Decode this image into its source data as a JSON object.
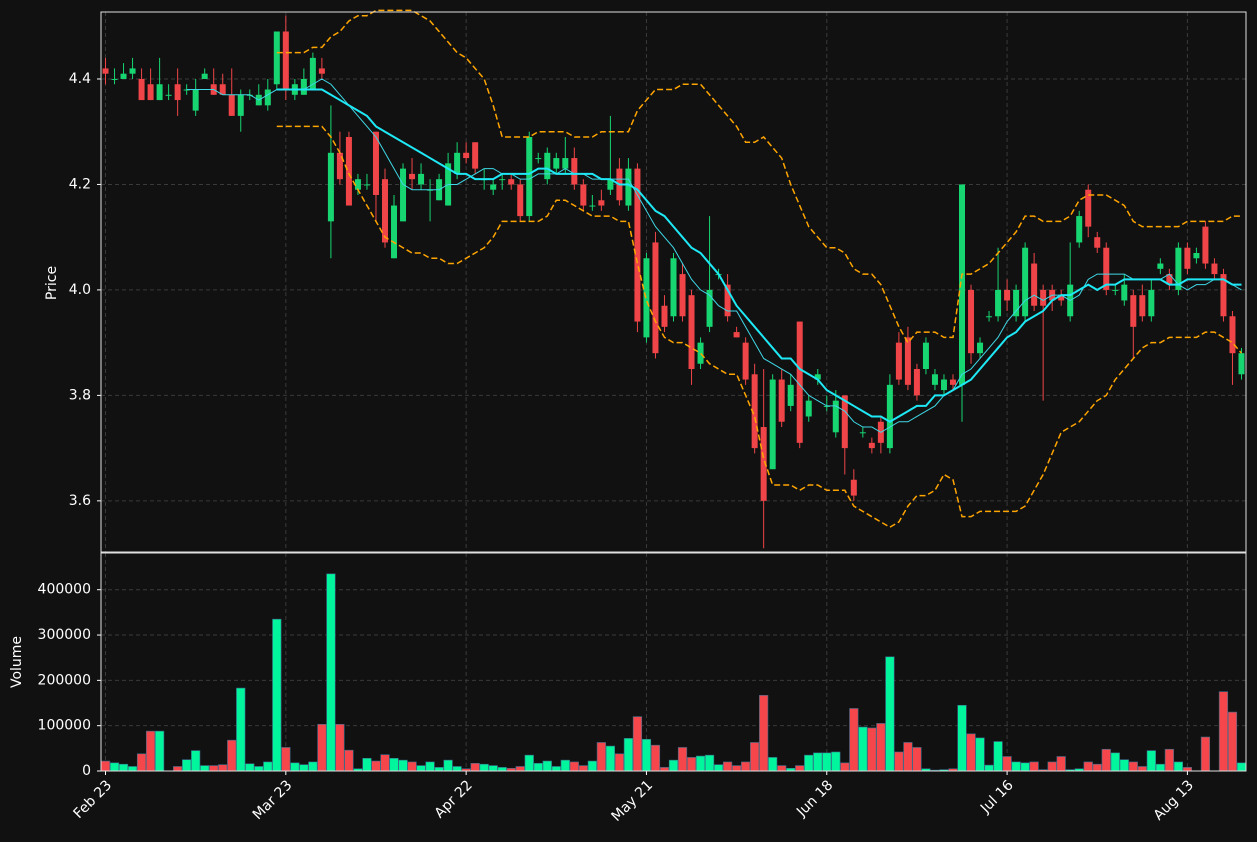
{
  "chart_data": {
    "type": "candlestick",
    "ylabel": "Price",
    "volume_label": "Volume",
    "ylim": [
      3.503,
      4.527
    ],
    "yticks": [
      3.6,
      3.8,
      {
        "value": 4,
        "label": "4.0"
      },
      4.2,
      4.4
    ],
    "volume_ylim": [
      0,
      481000
    ],
    "volume_yticks": [
      0,
      100000,
      200000,
      300000,
      400000
    ],
    "grid": true,
    "up_color": "#17d672",
    "down_color": "#ef4548",
    "volume_up_color": "#00f59c",
    "volume_down_color": "#f5464b",
    "categories": [
      "Feb 23",
      null,
      null,
      null,
      null,
      null,
      null,
      null,
      null,
      null,
      null,
      null,
      null,
      null,
      null,
      null,
      null,
      null,
      null,
      null,
      "Mar 23",
      null,
      null,
      null,
      null,
      null,
      null,
      null,
      null,
      null,
      null,
      null,
      null,
      null,
      null,
      null,
      null,
      null,
      null,
      null,
      "Apr 22",
      null,
      null,
      null,
      null,
      null,
      null,
      null,
      null,
      null,
      null,
      null,
      null,
      null,
      null,
      null,
      null,
      null,
      null,
      null,
      "May 21",
      null,
      null,
      null,
      null,
      null,
      null,
      null,
      null,
      null,
      null,
      null,
      null,
      null,
      null,
      null,
      null,
      null,
      null,
      null,
      "Jun 18",
      null,
      null,
      null,
      null,
      null,
      null,
      null,
      null,
      null,
      null,
      null,
      null,
      null,
      null,
      null,
      null,
      null,
      null,
      null,
      "Jul 16",
      null,
      null,
      null,
      null,
      null,
      null,
      null,
      null,
      null,
      null,
      null,
      null,
      null,
      null,
      null,
      null,
      null,
      null,
      null,
      "Aug 13",
      null,
      null,
      null,
      null,
      null,
      null
    ],
    "open": [
      4.42,
      4.4,
      4.4,
      4.41,
      4.4,
      4.39,
      4.36,
      4.37,
      4.39,
      4.38,
      4.34,
      4.4,
      4.39,
      4.39,
      4.37,
      4.33,
      4.37,
      4.35,
      4.35,
      4.39,
      4.49,
      4.37,
      4.37,
      4.38,
      4.42,
      4.13,
      4.26,
      4.29,
      4.19,
      4.2,
      4.3,
      4.21,
      4.06,
      4.13,
      4.22,
      4.2,
      4.19,
      4.17,
      4.16,
      4.22,
      4.26,
      4.28,
      4.21,
      4.19,
      4.21,
      4.21,
      4.2,
      4.14,
      4.25,
      4.21,
      4.23,
      4.23,
      4.25,
      4.2,
      4.16,
      4.17,
      4.19,
      4.23,
      4.16,
      4.23,
      3.91,
      4.09,
      3.97,
      3.95,
      4.03,
      3.99,
      3.86,
      3.93,
      4.03,
      4.01,
      3.92,
      3.9,
      3.84,
      3.74,
      3.66,
      3.83,
      3.78,
      3.94,
      3.76,
      3.83,
      3.78,
      3.73,
      3.8,
      3.64,
      3.73,
      3.71,
      3.75,
      3.7,
      3.9,
      3.91,
      3.85,
      3.85,
      3.82,
      3.81,
      3.83,
      3.82,
      4.0,
      3.88,
      3.95,
      3.95,
      4.0,
      3.95,
      3.95,
      4.05,
      4.0,
      4.0,
      3.99,
      3.95,
      4.09,
      4.19,
      4.1,
      4.08,
      4.0,
      3.98,
      3.99,
      3.99,
      3.95,
      4.04,
      4.03,
      4.0,
      4.08,
      4.06,
      4.12,
      4.05,
      4.03,
      3.95,
      3.84
    ],
    "high": [
      4.44,
      4.42,
      4.43,
      4.44,
      4.42,
      4.42,
      4.44,
      4.39,
      4.42,
      4.39,
      4.4,
      4.42,
      4.42,
      4.41,
      4.42,
      4.38,
      4.38,
      4.39,
      4.4,
      4.49,
      4.52,
      4.4,
      4.42,
      4.45,
      4.44,
      4.35,
      4.3,
      4.3,
      4.22,
      4.22,
      4.3,
      4.23,
      4.18,
      4.24,
      4.25,
      4.24,
      4.21,
      4.22,
      4.26,
      4.28,
      4.28,
      4.28,
      4.23,
      4.21,
      4.22,
      4.22,
      4.21,
      4.3,
      4.26,
      4.27,
      4.26,
      4.29,
      4.27,
      4.21,
      4.18,
      4.19,
      4.33,
      4.25,
      4.25,
      4.24,
      4.07,
      4.11,
      3.99,
      4.07,
      4.05,
      4.0,
      3.91,
      4.14,
      4.04,
      4.03,
      3.93,
      3.91,
      3.86,
      3.85,
      3.84,
      3.85,
      3.84,
      3.94,
      3.8,
      3.85,
      3.8,
      3.81,
      3.8,
      3.66,
      3.74,
      3.72,
      3.76,
      3.84,
      3.92,
      3.93,
      3.86,
      3.91,
      3.85,
      3.84,
      3.84,
      4.2,
      4.01,
      3.91,
      3.96,
      4.08,
      4.02,
      4.01,
      4.09,
      4.07,
      4.01,
      4.01,
      4.0,
      4.09,
      4.15,
      4.2,
      4.11,
      4.09,
      4.01,
      4.03,
      4.0,
      4.01,
      4.02,
      4.06,
      4.04,
      4.09,
      4.09,
      4.08,
      4.13,
      4.06,
      4.04,
      3.96,
      3.89
    ],
    "low": [
      4.39,
      4.39,
      4.4,
      4.4,
      4.36,
      4.36,
      4.36,
      4.36,
      4.33,
      4.37,
      4.33,
      4.4,
      4.37,
      4.37,
      4.33,
      4.3,
      4.36,
      4.35,
      4.34,
      4.38,
      4.36,
      4.36,
      4.37,
      4.38,
      4.4,
      4.06,
      4.2,
      4.16,
      4.18,
      4.19,
      4.13,
      4.08,
      4.06,
      4.13,
      4.19,
      4.19,
      4.13,
      4.17,
      4.16,
      4.21,
      4.24,
      4.22,
      4.19,
      4.18,
      4.19,
      4.19,
      4.13,
      4.13,
      4.24,
      4.2,
      4.22,
      4.22,
      4.19,
      4.15,
      4.15,
      4.15,
      4.18,
      4.16,
      4.15,
      3.92,
      3.9,
      3.87,
      3.92,
      3.94,
      3.94,
      3.82,
      3.85,
      3.92,
      4.02,
      3.94,
      3.91,
      3.82,
      3.69,
      3.51,
      3.66,
      3.74,
      3.77,
      3.7,
      3.75,
      3.82,
      3.77,
      3.72,
      3.65,
      3.6,
      3.72,
      3.69,
      3.69,
      3.69,
      3.82,
      3.81,
      3.79,
      3.84,
      3.81,
      3.8,
      3.81,
      3.75,
      3.86,
      3.87,
      3.94,
      3.94,
      3.96,
      3.94,
      3.94,
      3.96,
      3.79,
      3.96,
      3.97,
      3.94,
      4.08,
      4.1,
      4.07,
      3.99,
      3.99,
      3.97,
      3.87,
      3.94,
      3.94,
      4.03,
      4.0,
      3.99,
      4.03,
      4.05,
      4.04,
      4.02,
      3.94,
      3.82,
      3.83
    ],
    "close": [
      4.41,
      4.4,
      4.41,
      4.42,
      4.36,
      4.36,
      4.39,
      4.37,
      4.36,
      4.38,
      4.38,
      4.41,
      4.37,
      4.37,
      4.33,
      4.37,
      4.37,
      4.37,
      4.38,
      4.49,
      4.38,
      4.39,
      4.4,
      4.44,
      4.41,
      4.26,
      4.21,
      4.16,
      4.21,
      4.2,
      4.18,
      4.09,
      4.16,
      4.23,
      4.21,
      4.22,
      4.19,
      4.21,
      4.24,
      4.26,
      4.25,
      4.23,
      4.21,
      4.2,
      4.21,
      4.2,
      4.14,
      4.29,
      4.25,
      4.26,
      4.25,
      4.25,
      4.2,
      4.16,
      4.16,
      4.16,
      4.21,
      4.17,
      4.23,
      3.94,
      4.06,
      3.88,
      3.93,
      4.06,
      3.95,
      3.85,
      3.9,
      4.0,
      4.03,
      3.95,
      3.91,
      3.83,
      3.7,
      3.6,
      3.83,
      3.75,
      3.82,
      3.71,
      3.79,
      3.84,
      3.78,
      3.79,
      3.7,
      3.61,
      3.73,
      3.7,
      3.71,
      3.82,
      3.83,
      3.82,
      3.8,
      3.9,
      3.84,
      3.83,
      3.82,
      4.2,
      3.88,
      3.9,
      3.95,
      4.0,
      3.98,
      4.0,
      4.08,
      3.97,
      3.97,
      3.98,
      3.98,
      4.01,
      4.14,
      4.12,
      4.08,
      4.0,
      4.0,
      4.01,
      3.93,
      3.95,
      4.0,
      4.05,
      4.01,
      4.08,
      4.04,
      4.07,
      4.05,
      4.03,
      3.95,
      3.88,
      3.88
    ],
    "volume": [
      22000,
      18000,
      15000,
      10000,
      38000,
      88000,
      88000,
      0,
      10000,
      25000,
      45000,
      12000,
      12000,
      14000,
      68000,
      183000,
      16000,
      10000,
      20000,
      335000,
      52000,
      18000,
      14000,
      20000,
      103000,
      435000,
      103000,
      46000,
      5000,
      28000,
      22000,
      36000,
      28000,
      24000,
      20000,
      12000,
      20000,
      8000,
      24000,
      10000,
      5000,
      17000,
      15000,
      12000,
      8000,
      6000,
      10000,
      35000,
      17000,
      22000,
      10000,
      24000,
      20000,
      12000,
      22000,
      63000,
      55000,
      38000,
      72000,
      120000,
      70000,
      57000,
      8000,
      24000,
      52000,
      30000,
      33000,
      35000,
      14000,
      20000,
      12000,
      20000,
      63000,
      167000,
      30000,
      12000,
      6000,
      12000,
      35000,
      40000,
      40000,
      42000,
      18000,
      138000,
      97000,
      95000,
      105000,
      252000,
      42000,
      63000,
      52000,
      5000,
      2000,
      3000,
      5000,
      145000,
      82000,
      73000,
      13000,
      65000,
      32000,
      20000,
      18000,
      20000,
      3000,
      20000,
      32000,
      3000,
      5000,
      20000,
      15000,
      48000,
      40000,
      25000,
      20000,
      10000,
      45000,
      15000,
      48000,
      20000,
      8000,
      0,
      75000,
      0,
      175000,
      130000,
      18000
    ],
    "overlays": [
      {
        "color": "#ffa500",
        "linestyle": "dashed",
        "linewidth": 1.5,
        "values": [
          null,
          null,
          null,
          null,
          null,
          null,
          null,
          null,
          null,
          null,
          null,
          null,
          null,
          null,
          null,
          null,
          null,
          null,
          null,
          4.45,
          4.45,
          4.45,
          4.45,
          4.46,
          4.46,
          4.48,
          4.49,
          4.51,
          4.52,
          4.52,
          4.53,
          4.53,
          4.53,
          4.53,
          4.53,
          4.52,
          4.51,
          4.49,
          4.47,
          4.45,
          4.44,
          4.42,
          4.4,
          4.35,
          4.29,
          4.29,
          4.29,
          4.29,
          4.3,
          4.3,
          4.3,
          4.3,
          4.29,
          4.29,
          4.29,
          4.3,
          4.3,
          4.3,
          4.3,
          4.34,
          4.36,
          4.38,
          4.38,
          4.38,
          4.39,
          4.39,
          4.39,
          4.37,
          4.35,
          4.33,
          4.31,
          4.28,
          4.28,
          4.29,
          4.27,
          4.25,
          4.2,
          4.16,
          4.12,
          4.1,
          4.08,
          4.08,
          4.07,
          4.04,
          4.03,
          4.03,
          4.01,
          3.97,
          3.93,
          3.9,
          3.92,
          3.92,
          3.92,
          3.91,
          3.91,
          4.03,
          4.03,
          4.04,
          4.05,
          4.07,
          4.09,
          4.11,
          4.14,
          4.14,
          4.13,
          4.13,
          4.13,
          4.14,
          4.17,
          4.18,
          4.18,
          4.18,
          4.17,
          4.16,
          4.13,
          4.12,
          4.12,
          4.12,
          4.12,
          4.12,
          4.13,
          4.13,
          4.13,
          4.13,
          4.13,
          4.14,
          4.14
        ]
      },
      {
        "color": "#ffa500",
        "linestyle": "dashed",
        "linewidth": 1.5,
        "values": [
          null,
          null,
          null,
          null,
          null,
          null,
          null,
          null,
          null,
          null,
          null,
          null,
          null,
          null,
          null,
          null,
          null,
          null,
          null,
          4.31,
          4.31,
          4.31,
          4.31,
          4.31,
          4.31,
          4.29,
          4.26,
          4.22,
          4.19,
          4.16,
          4.13,
          4.1,
          4.09,
          4.08,
          4.07,
          4.07,
          4.06,
          4.06,
          4.05,
          4.05,
          4.06,
          4.07,
          4.08,
          4.1,
          4.13,
          4.13,
          4.13,
          4.13,
          4.13,
          4.14,
          4.17,
          4.17,
          4.16,
          4.15,
          4.14,
          4.14,
          4.14,
          4.13,
          4.13,
          4.05,
          3.98,
          3.94,
          3.91,
          3.9,
          3.9,
          3.89,
          3.88,
          3.86,
          3.85,
          3.84,
          3.84,
          3.8,
          3.76,
          3.68,
          3.63,
          3.63,
          3.63,
          3.62,
          3.63,
          3.63,
          3.62,
          3.62,
          3.62,
          3.59,
          3.58,
          3.57,
          3.56,
          3.55,
          3.56,
          3.59,
          3.61,
          3.61,
          3.62,
          3.65,
          3.64,
          3.57,
          3.57,
          3.58,
          3.58,
          3.58,
          3.58,
          3.58,
          3.59,
          3.62,
          3.65,
          3.69,
          3.73,
          3.74,
          3.75,
          3.77,
          3.79,
          3.8,
          3.83,
          3.85,
          3.87,
          3.89,
          3.9,
          3.9,
          3.91,
          3.91,
          3.91,
          3.91,
          3.92,
          3.92,
          3.91,
          3.9,
          3.88
        ]
      },
      {
        "color": "#3fd8e6",
        "linestyle": "solid",
        "linewidth": 1,
        "values": [
          null,
          null,
          null,
          null,
          null,
          null,
          null,
          null,
          null,
          4.38,
          4.38,
          4.38,
          4.38,
          4.37,
          4.37,
          4.37,
          4.37,
          4.36,
          4.37,
          4.38,
          4.38,
          4.38,
          4.38,
          4.39,
          4.4,
          4.39,
          4.37,
          4.35,
          4.33,
          4.31,
          4.29,
          4.26,
          4.23,
          4.2,
          4.19,
          4.19,
          4.19,
          4.19,
          4.2,
          4.2,
          4.21,
          4.22,
          4.23,
          4.23,
          4.22,
          4.22,
          4.21,
          4.21,
          4.22,
          4.22,
          4.22,
          4.23,
          4.22,
          4.22,
          4.21,
          4.21,
          4.21,
          4.21,
          4.21,
          4.18,
          4.15,
          4.12,
          4.1,
          4.08,
          4.05,
          4.02,
          4.0,
          3.99,
          3.97,
          3.96,
          3.96,
          3.93,
          3.9,
          3.87,
          3.86,
          3.85,
          3.84,
          3.82,
          3.8,
          3.79,
          3.78,
          3.78,
          3.77,
          3.75,
          3.74,
          3.74,
          3.73,
          3.74,
          3.75,
          3.75,
          3.76,
          3.77,
          3.78,
          3.8,
          3.81,
          3.84,
          3.85,
          3.87,
          3.89,
          3.91,
          3.94,
          3.96,
          3.98,
          3.99,
          3.98,
          3.99,
          3.99,
          3.98,
          3.99,
          4.02,
          4.03,
          4.03,
          4.03,
          4.03,
          4.02,
          4.02,
          4.02,
          4.02,
          4.03,
          4.01,
          4.0,
          4.01,
          4.01,
          4.02,
          4.02,
          4.01,
          4.0
        ]
      },
      {
        "color": "#1ee8f5",
        "linestyle": "solid",
        "linewidth": 2,
        "values": [
          null,
          null,
          null,
          null,
          null,
          null,
          null,
          null,
          null,
          null,
          null,
          null,
          null,
          null,
          null,
          null,
          null,
          null,
          null,
          4.38,
          4.38,
          4.38,
          4.38,
          4.38,
          4.38,
          4.37,
          4.36,
          4.35,
          4.34,
          4.33,
          4.31,
          4.3,
          4.29,
          4.28,
          4.27,
          4.26,
          4.25,
          4.24,
          4.23,
          4.22,
          4.22,
          4.21,
          4.21,
          4.21,
          4.22,
          4.22,
          4.22,
          4.22,
          4.23,
          4.23,
          4.22,
          4.22,
          4.22,
          4.22,
          4.22,
          4.21,
          4.21,
          4.2,
          4.2,
          4.19,
          4.17,
          4.15,
          4.14,
          4.12,
          4.1,
          4.08,
          4.07,
          4.05,
          4.03,
          4.0,
          3.97,
          3.95,
          3.93,
          3.91,
          3.89,
          3.87,
          3.87,
          3.85,
          3.84,
          3.83,
          3.81,
          3.8,
          3.79,
          3.78,
          3.77,
          3.76,
          3.76,
          3.75,
          3.76,
          3.77,
          3.78,
          3.78,
          3.8,
          3.8,
          3.81,
          3.82,
          3.83,
          3.85,
          3.87,
          3.89,
          3.91,
          3.92,
          3.94,
          3.95,
          3.96,
          3.98,
          3.99,
          3.99,
          4.0,
          4.01,
          4.0,
          4.01,
          4.01,
          4.02,
          4.02,
          4.02,
          4.02,
          4.02,
          4.01,
          4.01,
          4.02,
          4.02,
          4.02,
          4.02,
          4.02,
          4.01,
          4.01
        ]
      }
    ]
  }
}
